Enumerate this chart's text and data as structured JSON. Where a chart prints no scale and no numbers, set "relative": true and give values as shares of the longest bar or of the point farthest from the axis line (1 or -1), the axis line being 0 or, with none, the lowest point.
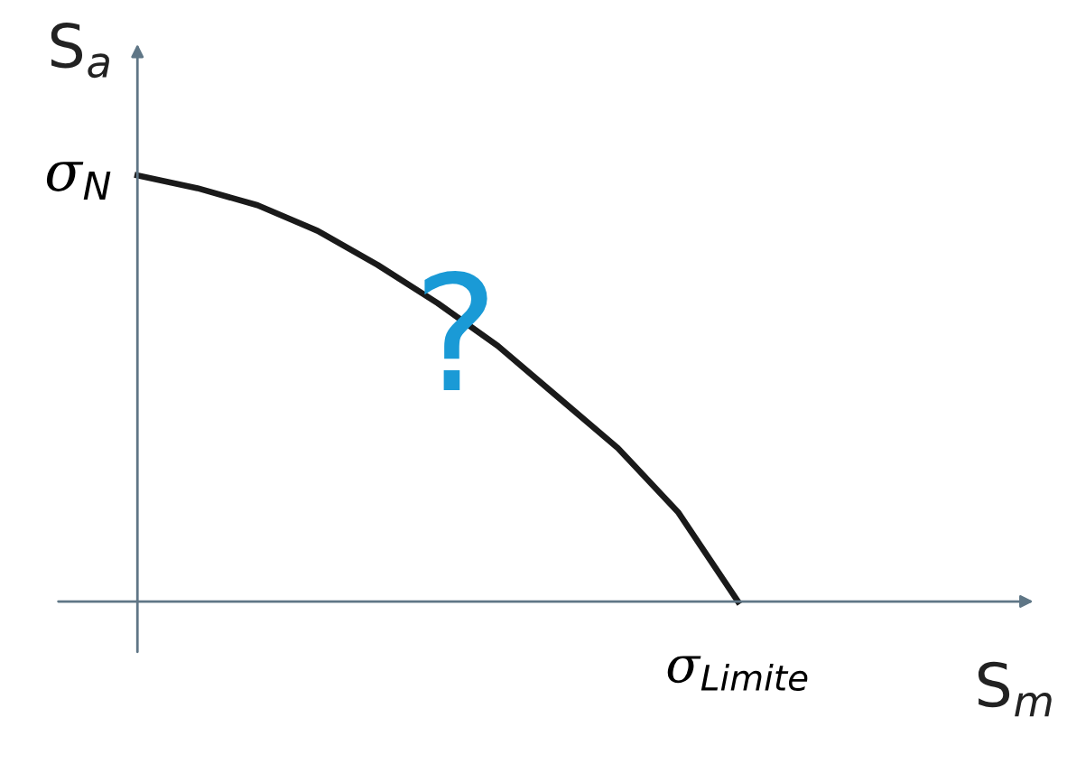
{
  "chart_data": {
    "type": "line",
    "relative": true,
    "xlabel": "S$_{m}$",
    "ylabel": "S$_{a}$",
    "categories": [
      null,
      null,
      null,
      null,
      null,
      null,
      null,
      null,
      null,
      null,
      null
    ],
    "series": [
      {
        "color": "#1a1a1a",
        "values": [
          1,
          0.97,
          0.93,
          0.87,
          0.79,
          0.7,
          0.6,
          0.48,
          0.36,
          0.21,
          0
        ]
      }
    ],
    "annotations": [
      "σ$_{N}$",
      "σ$_{Limite}$",
      "?"
    ],
    "marker": "none",
    "line_style": "solid",
    "legend": false,
    "tick_labels": false
  }
}
